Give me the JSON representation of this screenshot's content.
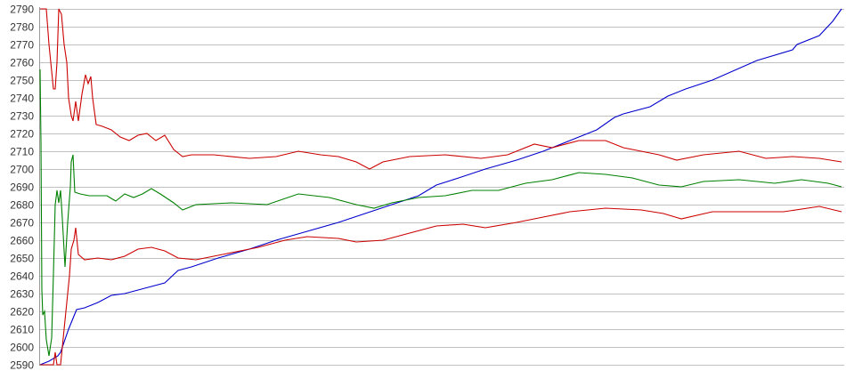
{
  "chart_data": {
    "type": "line",
    "title": "",
    "xlabel": "",
    "ylabel": "",
    "ylim": [
      2590,
      2790
    ],
    "yticks": [
      2590,
      2600,
      2610,
      2620,
      2630,
      2640,
      2650,
      2660,
      2670,
      2680,
      2690,
      2700,
      2710,
      2720,
      2730,
      2740,
      2750,
      2760,
      2770,
      2780,
      2790
    ],
    "xlim": [
      0,
      900
    ],
    "grid": "horizontal",
    "legend": "none",
    "series": [
      {
        "color": "#0000cc",
        "points": [
          [
            0,
            2590
          ],
          [
            10,
            2592
          ],
          [
            20,
            2595
          ],
          [
            23,
            2597
          ],
          [
            32,
            2610
          ],
          [
            41,
            2621
          ],
          [
            50,
            2622
          ],
          [
            65,
            2625
          ],
          [
            80,
            2629
          ],
          [
            95,
            2630
          ],
          [
            110,
            2632
          ],
          [
            125,
            2634
          ],
          [
            140,
            2636
          ],
          [
            155,
            2643
          ],
          [
            170,
            2645
          ],
          [
            200,
            2650
          ],
          [
            235,
            2655
          ],
          [
            265,
            2660
          ],
          [
            300,
            2665
          ],
          [
            335,
            2670
          ],
          [
            365,
            2675
          ],
          [
            395,
            2680
          ],
          [
            425,
            2685
          ],
          [
            445,
            2691
          ],
          [
            470,
            2695
          ],
          [
            500,
            2700
          ],
          [
            535,
            2705
          ],
          [
            565,
            2710
          ],
          [
            595,
            2716
          ],
          [
            625,
            2722
          ],
          [
            645,
            2729
          ],
          [
            655,
            2731
          ],
          [
            685,
            2735
          ],
          [
            705,
            2741
          ],
          [
            725,
            2745
          ],
          [
            755,
            2750
          ],
          [
            805,
            2761
          ],
          [
            845,
            2767
          ],
          [
            850,
            2770
          ],
          [
            875,
            2775
          ],
          [
            890,
            2783
          ],
          [
            900,
            2790
          ]
        ]
      },
      {
        "color": "#cc0000",
        "points": [
          [
            0,
            2790
          ],
          [
            7,
            2790
          ],
          [
            10,
            2770
          ],
          [
            12,
            2760
          ],
          [
            15,
            2745
          ],
          [
            17,
            2745
          ],
          [
            19,
            2760
          ],
          [
            21,
            2790
          ],
          [
            24,
            2787
          ],
          [
            27,
            2770
          ],
          [
            30,
            2760
          ],
          [
            32,
            2740
          ],
          [
            35,
            2730
          ],
          [
            37,
            2727
          ],
          [
            40,
            2738
          ],
          [
            43,
            2727
          ],
          [
            47,
            2742
          ],
          [
            51,
            2753
          ],
          [
            54,
            2748
          ],
          [
            57,
            2752
          ],
          [
            59,
            2740
          ],
          [
            63,
            2725
          ],
          [
            70,
            2724
          ],
          [
            80,
            2722
          ],
          [
            90,
            2718
          ],
          [
            100,
            2716
          ],
          [
            110,
            2719
          ],
          [
            120,
            2720
          ],
          [
            130,
            2716
          ],
          [
            140,
            2719
          ],
          [
            150,
            2711
          ],
          [
            160,
            2707
          ],
          [
            170,
            2708
          ],
          [
            195,
            2708
          ],
          [
            235,
            2706
          ],
          [
            265,
            2707
          ],
          [
            290,
            2710
          ],
          [
            315,
            2708
          ],
          [
            335,
            2707
          ],
          [
            355,
            2704
          ],
          [
            370,
            2700
          ],
          [
            385,
            2704
          ],
          [
            415,
            2707
          ],
          [
            455,
            2708
          ],
          [
            495,
            2706
          ],
          [
            525,
            2708
          ],
          [
            555,
            2714
          ],
          [
            575,
            2712
          ],
          [
            605,
            2716
          ],
          [
            635,
            2716
          ],
          [
            655,
            2712
          ],
          [
            695,
            2708
          ],
          [
            715,
            2705
          ],
          [
            745,
            2708
          ],
          [
            785,
            2710
          ],
          [
            815,
            2706
          ],
          [
            845,
            2707
          ],
          [
            875,
            2706
          ],
          [
            900,
            2704
          ]
        ]
      },
      {
        "color": "#008000",
        "points": [
          [
            0,
            2756
          ],
          [
            1,
            2715
          ],
          [
            2,
            2632
          ],
          [
            3,
            2618
          ],
          [
            5,
            2620
          ],
          [
            7,
            2604
          ],
          [
            10,
            2595
          ],
          [
            13,
            2605
          ],
          [
            15,
            2641
          ],
          [
            17,
            2680
          ],
          [
            19,
            2688
          ],
          [
            21,
            2681
          ],
          [
            23,
            2688
          ],
          [
            25,
            2672
          ],
          [
            28,
            2645
          ],
          [
            31,
            2670
          ],
          [
            34,
            2690
          ],
          [
            35,
            2704
          ],
          [
            37,
            2708
          ],
          [
            39,
            2687
          ],
          [
            45,
            2686
          ],
          [
            55,
            2685
          ],
          [
            65,
            2685
          ],
          [
            75,
            2685
          ],
          [
            85,
            2682
          ],
          [
            95,
            2686
          ],
          [
            105,
            2684
          ],
          [
            115,
            2686
          ],
          [
            125,
            2689
          ],
          [
            135,
            2686
          ],
          [
            150,
            2681
          ],
          [
            160,
            2677
          ],
          [
            175,
            2680
          ],
          [
            215,
            2681
          ],
          [
            255,
            2680
          ],
          [
            290,
            2686
          ],
          [
            325,
            2684
          ],
          [
            355,
            2680
          ],
          [
            375,
            2678
          ],
          [
            395,
            2681
          ],
          [
            425,
            2684
          ],
          [
            455,
            2685
          ],
          [
            485,
            2688
          ],
          [
            515,
            2688
          ],
          [
            545,
            2692
          ],
          [
            575,
            2694
          ],
          [
            605,
            2698
          ],
          [
            635,
            2697
          ],
          [
            665,
            2695
          ],
          [
            695,
            2691
          ],
          [
            720,
            2690
          ],
          [
            745,
            2693
          ],
          [
            785,
            2694
          ],
          [
            825,
            2692
          ],
          [
            855,
            2694
          ],
          [
            885,
            2692
          ],
          [
            900,
            2690
          ]
        ]
      },
      {
        "color": "#cc0000",
        "points": [
          [
            0,
            2590
          ],
          [
            15,
            2590
          ],
          [
            17,
            2597
          ],
          [
            19,
            2590
          ],
          [
            23,
            2590
          ],
          [
            25,
            2600
          ],
          [
            29,
            2620
          ],
          [
            33,
            2640
          ],
          [
            35,
            2655
          ],
          [
            38,
            2660
          ],
          [
            40,
            2667
          ],
          [
            43,
            2652
          ],
          [
            50,
            2649
          ],
          [
            65,
            2650
          ],
          [
            80,
            2649
          ],
          [
            95,
            2651
          ],
          [
            110,
            2655
          ],
          [
            125,
            2656
          ],
          [
            140,
            2654
          ],
          [
            155,
            2650
          ],
          [
            175,
            2649
          ],
          [
            205,
            2652
          ],
          [
            245,
            2656
          ],
          [
            275,
            2660
          ],
          [
            300,
            2662
          ],
          [
            335,
            2661
          ],
          [
            355,
            2659
          ],
          [
            385,
            2660
          ],
          [
            415,
            2664
          ],
          [
            445,
            2668
          ],
          [
            475,
            2669
          ],
          [
            500,
            2667
          ],
          [
            535,
            2670
          ],
          [
            555,
            2672
          ],
          [
            595,
            2676
          ],
          [
            635,
            2678
          ],
          [
            675,
            2677
          ],
          [
            700,
            2675
          ],
          [
            720,
            2672
          ],
          [
            755,
            2676
          ],
          [
            795,
            2676
          ],
          [
            835,
            2676
          ],
          [
            875,
            2679
          ],
          [
            900,
            2676
          ]
        ]
      }
    ]
  }
}
